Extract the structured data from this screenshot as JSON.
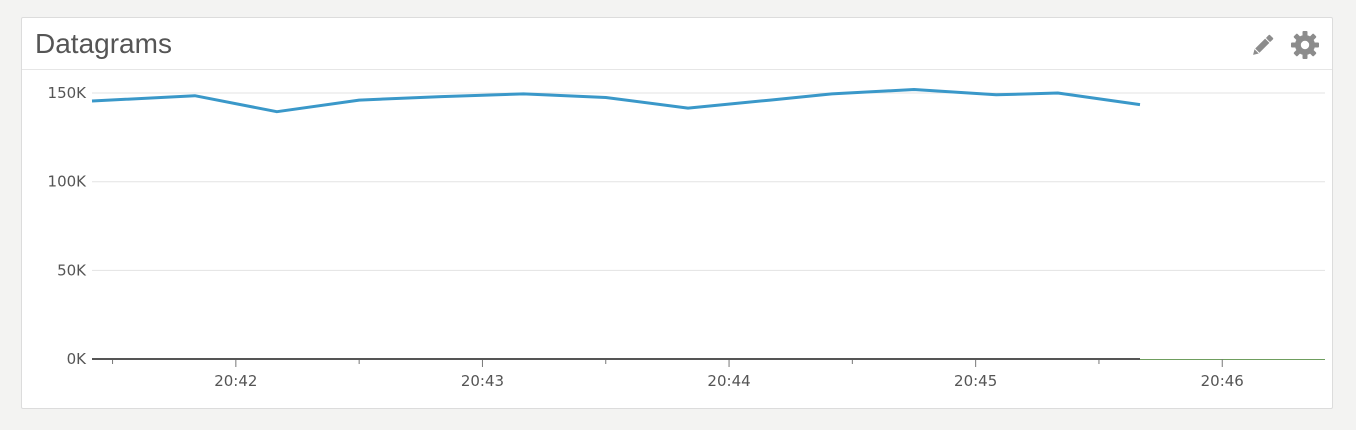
{
  "panel": {
    "title": "Datagrams"
  },
  "icons": {
    "edit": "pencil-icon",
    "settings": "gear-icon"
  },
  "colors": {
    "series": "#3a98c9",
    "baseline": "#555555",
    "grid": "#e3e3e3",
    "icon": "#8c8c8c"
  },
  "chart_data": {
    "type": "line",
    "title": "",
    "xlabel": "",
    "ylabel": "",
    "grid": true,
    "ylim": [
      0,
      163000
    ],
    "yticks": [
      0,
      50000,
      100000,
      150000
    ],
    "ytick_labels": [
      "0K",
      "50K",
      "100K",
      "150K"
    ],
    "x_range": [
      "20:41:25",
      "20:46:25"
    ],
    "xtick_labels": [
      "20:42",
      "20:43",
      "20:44",
      "20:45",
      "20:46"
    ],
    "series": [
      {
        "values": [
          {
            "x": "20:41:25",
            "y": 145500
          },
          {
            "x": "20:41:50",
            "y": 148500
          },
          {
            "x": "20:42:10",
            "y": 139500
          },
          {
            "x": "20:42:30",
            "y": 146000
          },
          {
            "x": "20:42:50",
            "y": 148000
          },
          {
            "x": "20:43:10",
            "y": 149500
          },
          {
            "x": "20:43:30",
            "y": 147500
          },
          {
            "x": "20:43:50",
            "y": 141500
          },
          {
            "x": "20:44:10",
            "y": 146000
          },
          {
            "x": "20:44:25",
            "y": 149500
          },
          {
            "x": "20:44:45",
            "y": 152000
          },
          {
            "x": "20:45:05",
            "y": 149000
          },
          {
            "x": "20:45:20",
            "y": 150000
          },
          {
            "x": "20:45:40",
            "y": 143500
          }
        ]
      },
      {
        "values": [
          {
            "x": "20:41:25",
            "y": 0
          },
          {
            "x": "20:45:40",
            "y": 0
          }
        ]
      }
    ]
  }
}
